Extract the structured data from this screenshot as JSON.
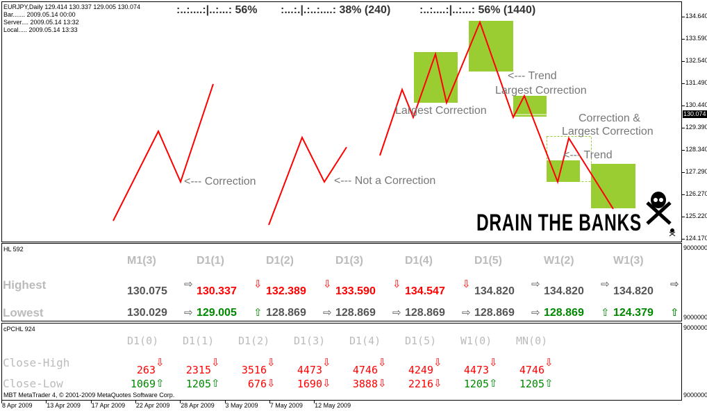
{
  "info": {
    "symbol_line": "EURJPY,Daily  129.414 130.337 129.005 130.074",
    "bar": "Bar....... 2009.05.14 00:00",
    "server": "Server.... 2009.05.14 13:32",
    "local": "Local..... 2009.05.14 13:33"
  },
  "header": {
    "h1": ":..:....:|..:...:  56%",
    "h2": ":...:.|.:..:....:  38%  (240)",
    "h3": ":..:....:|..:...:  56%  (1440)"
  },
  "annotations": {
    "a1": "<--- Correction",
    "a2": "<--- Not a Correction",
    "a3": "Largest Correction",
    "a4": "<--- Trend",
    "a5": "Largest Correction",
    "a6": "Correction &",
    "a7": "Largest Correction",
    "a8": "<--- Trend",
    "banner": "DRAIN THE BANKS"
  },
  "price_axis": {
    "ticks": [
      "134.640",
      "133.590",
      "132.540",
      "131.490",
      "130.440",
      "129.390",
      "128.340",
      "127.290",
      "126.270",
      "125.220",
      "124.170"
    ],
    "current": "130.074"
  },
  "colors": {
    "line": "#ff0000",
    "box": "#9acd32",
    "green": "#008000",
    "red": "#ff0000"
  },
  "hl_panel": {
    "title": "HL 592",
    "axis_top": "9000000",
    "axis_bottom": "9000000",
    "columns": [
      "M1(3)",
      "D1(1)",
      "D1(2)",
      "D1(3)",
      "D1(4)",
      "D1(5)",
      "W1(2)",
      "W1(3)"
    ],
    "rows": [
      {
        "label": "Highest",
        "values": [
          "130.075",
          "130.337",
          "132.389",
          "133.590",
          "134.547",
          "134.820",
          "134.820",
          "134.820"
        ],
        "arrows": [
          "right",
          "down",
          "down",
          "down",
          "down",
          "right",
          "right",
          "right"
        ],
        "colors": [
          "dk",
          "red",
          "red",
          "red",
          "red",
          "dk",
          "dk",
          "dk"
        ]
      },
      {
        "label": "Lowest",
        "values": [
          "130.029",
          "129.005",
          "128.869",
          "128.869",
          "128.869",
          "128.869",
          "128.869",
          "124.379"
        ],
        "arrows": [
          "right",
          "up",
          "right",
          "right",
          "right",
          "right",
          "up",
          "up"
        ],
        "colors": [
          "dk",
          "grn",
          "dk",
          "dk",
          "dk",
          "dk",
          "grn",
          "grn"
        ]
      }
    ]
  },
  "pchl_panel": {
    "title": "cPCHL 924",
    "axis_top": "9000000",
    "axis_bottom": "9000000",
    "columns": [
      "D1(0)",
      "D1(1)",
      "D1(2)",
      "D1(3)",
      "D1(4)",
      "D1(5)",
      "W1(0)",
      "MN(0)"
    ],
    "rows": [
      {
        "label": "Close-High",
        "values": [
          "263",
          "2315",
          "3516",
          "4473",
          "4746",
          "4249",
          "4473",
          "4746"
        ],
        "arrows": [
          "down",
          "down",
          "down",
          "down",
          "down",
          "down",
          "down",
          "down"
        ],
        "colors": [
          "red",
          "red",
          "red",
          "red",
          "red",
          "red",
          "red",
          "red"
        ]
      },
      {
        "label": "Close-Low",
        "values": [
          "1069",
          "1205",
          "676",
          "1690",
          "3888",
          "2216",
          "1205",
          "1205"
        ],
        "arrows": [
          "up",
          "up",
          "down",
          "down",
          "down",
          "down",
          "up",
          "up"
        ],
        "colors": [
          "grn",
          "grn",
          "red",
          "red",
          "red",
          "red",
          "grn",
          "grn"
        ]
      }
    ]
  },
  "copyright": "MBT MetaTrader 4, © 2001-2009 MetaQuotes Software Corp.",
  "dates": [
    "8 Apr 2009",
    "13 Apr 2009",
    "17 Apr 2009",
    "22 Apr 2009",
    "28 Apr 2009",
    "3 May 2009",
    "7 May 2009",
    "12 May 2009"
  ]
}
